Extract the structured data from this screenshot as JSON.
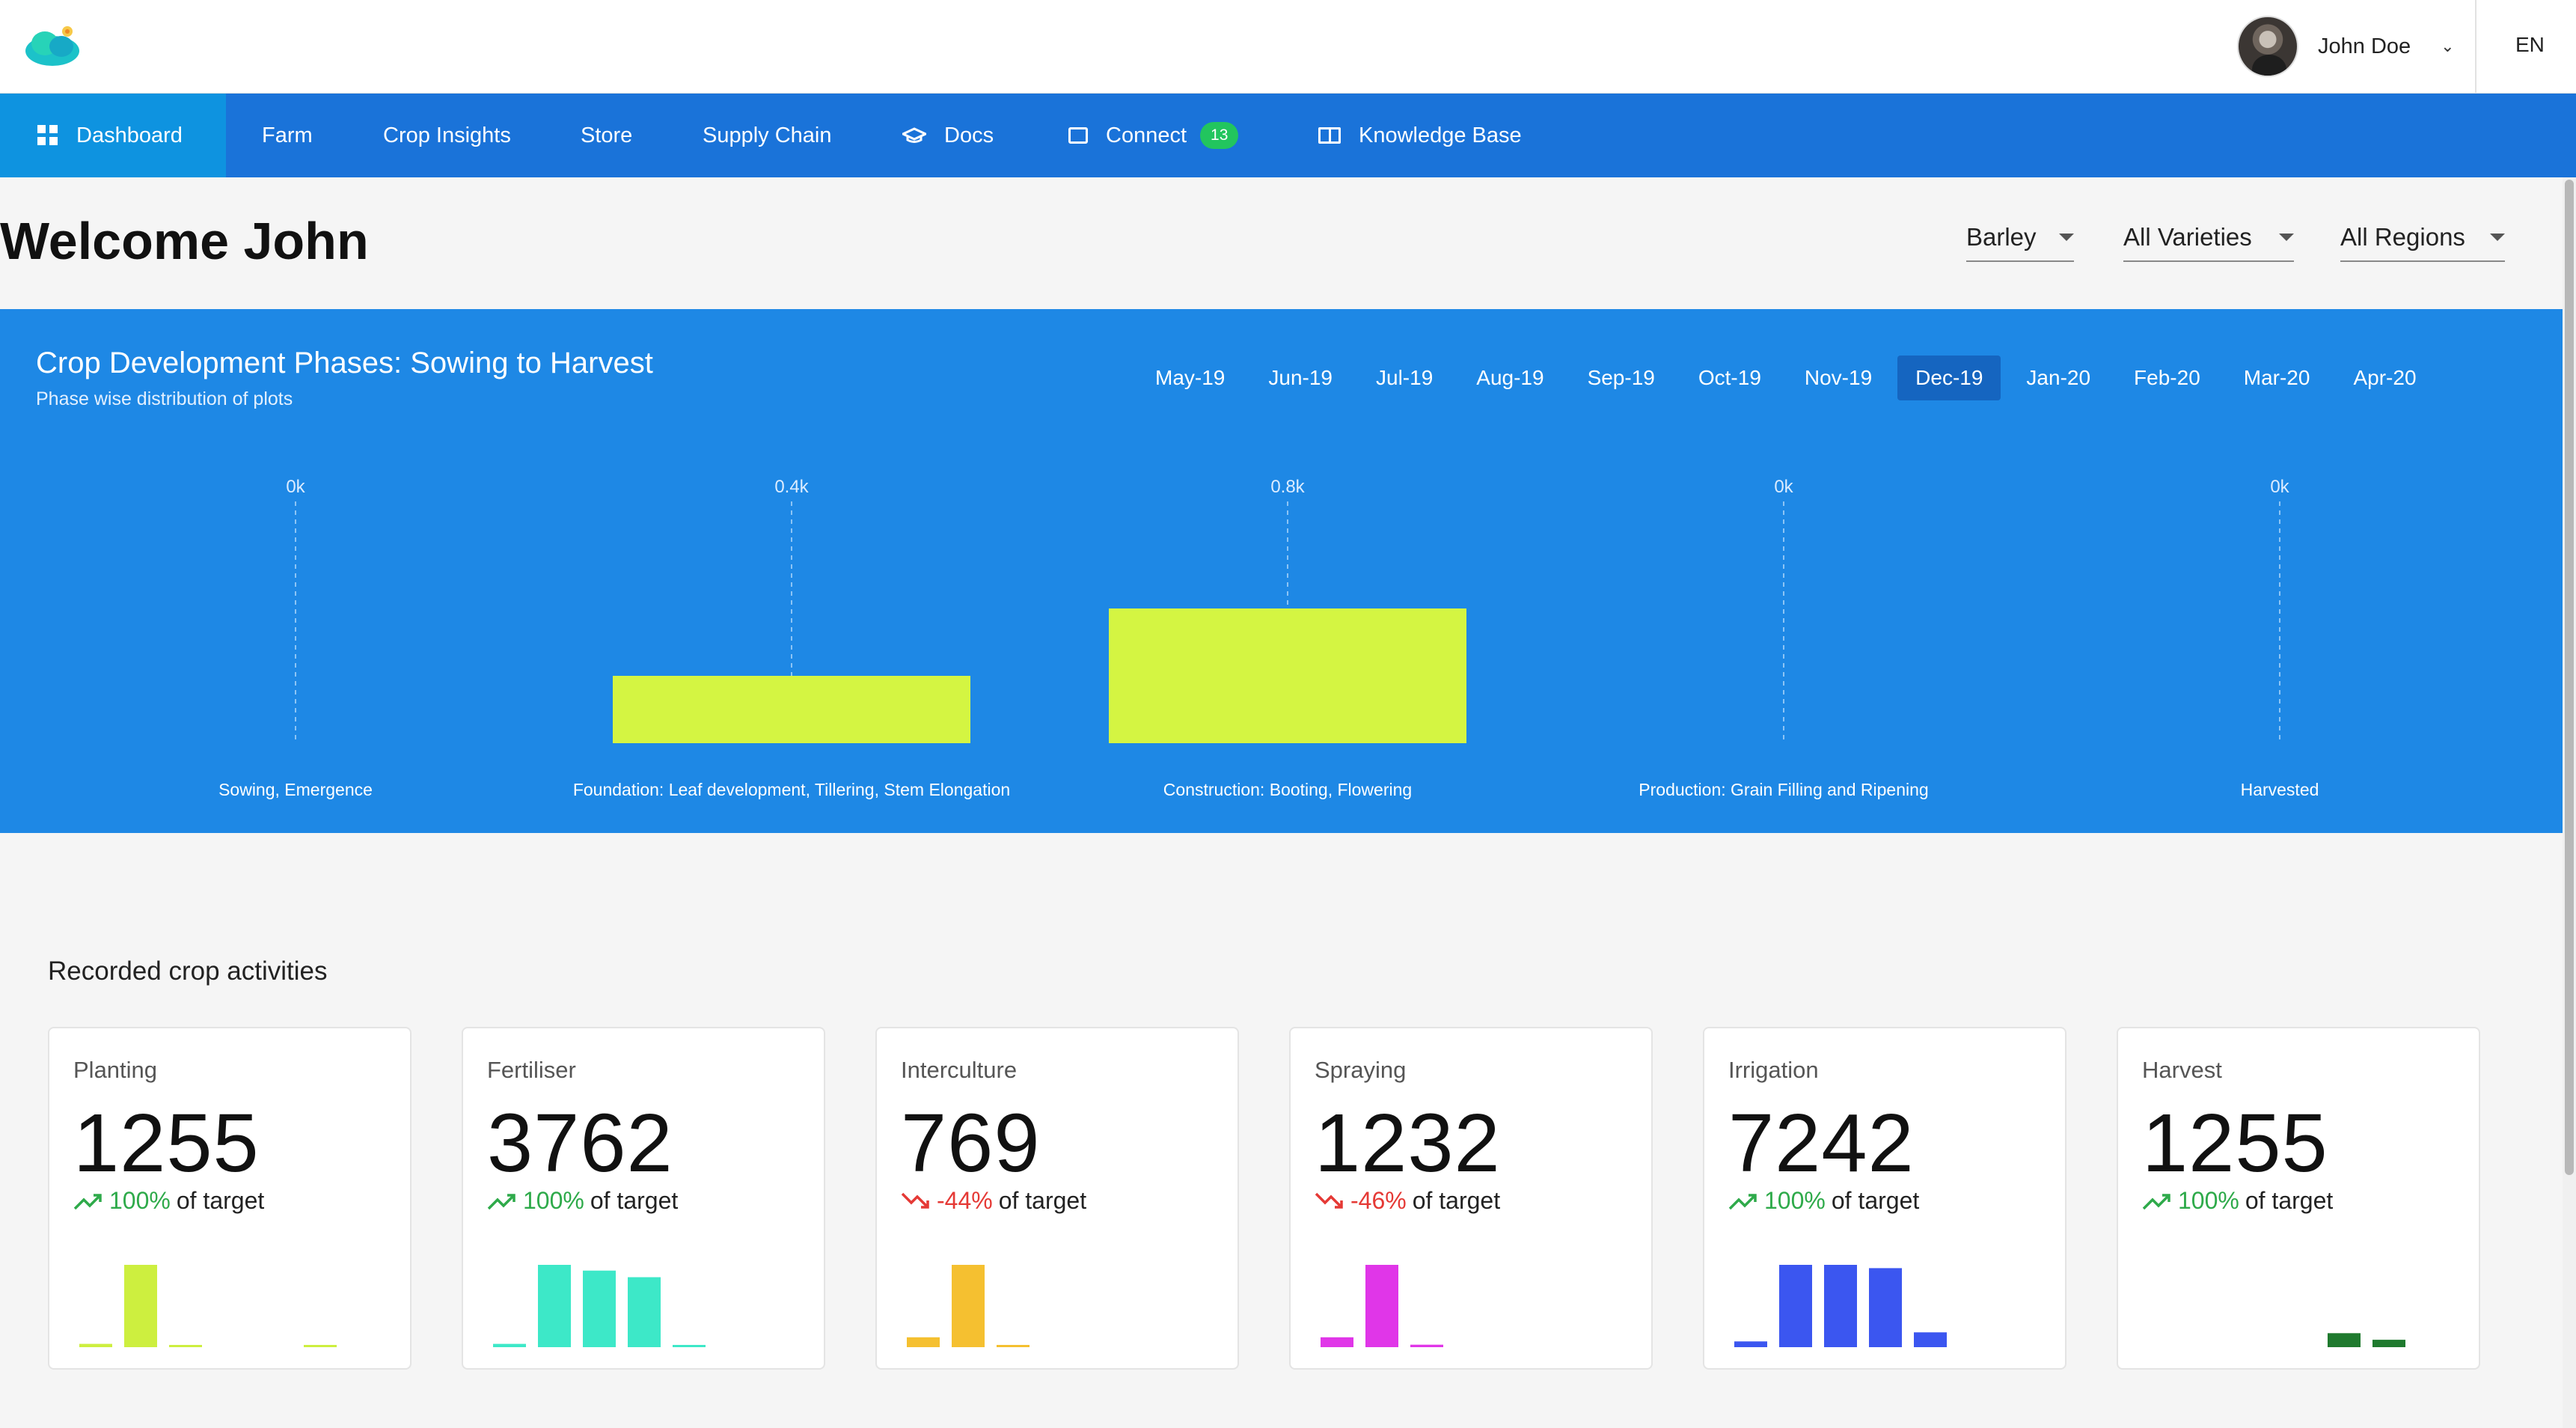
{
  "header": {
    "user_name": "John Doe",
    "language": "EN"
  },
  "nav": {
    "items": [
      {
        "label": "Dashboard",
        "icon": "dashboard-icon",
        "active": true
      },
      {
        "label": "Farm"
      },
      {
        "label": "Crop Insights"
      },
      {
        "label": "Store"
      },
      {
        "label": "Supply Chain"
      },
      {
        "label": "Docs",
        "icon": "graduation-cap-icon"
      },
      {
        "label": "Connect",
        "icon": "chat-icon",
        "badge": "13"
      },
      {
        "label": "Knowledge Base",
        "icon": "book-icon"
      }
    ]
  },
  "welcome": "Welcome John",
  "filters": {
    "crop": "Barley",
    "variety": "All Varieties",
    "region": "All Regions"
  },
  "chart_panel": {
    "title": "Crop Development Phases: Sowing to Harvest",
    "subtitle": "Phase wise distribution of plots",
    "months": [
      "May-19",
      "Jun-19",
      "Jul-19",
      "Aug-19",
      "Sep-19",
      "Oct-19",
      "Nov-19",
      "Dec-19",
      "Jan-20",
      "Feb-20",
      "Mar-20",
      "Apr-20"
    ],
    "active_month": "Dec-19"
  },
  "chart_data": {
    "type": "bar",
    "title": "Crop Development Phases: Sowing to Harvest",
    "subtitle": "Phase wise distribution of plots",
    "categories": [
      "Sowing, Emergence",
      "Foundation: Leaf development, Tillering, Stem Elongation",
      "Construction: Booting, Flowering",
      "Production: Grain Filling and Ripening",
      "Harvested"
    ],
    "values": [
      0,
      400,
      800,
      0,
      0
    ],
    "data_labels": [
      "0k",
      "0.4k",
      "0.8k",
      "0k",
      "0k"
    ],
    "bar_color": "#d4f542",
    "grid": false
  },
  "activities": {
    "title": "Recorded crop activities",
    "of_target": "of target",
    "cards": [
      {
        "label": "Planting",
        "value": "1255",
        "trend": "100%",
        "direction": "up",
        "color": "#cdef3f",
        "bars": [
          0.04,
          1.0,
          0.01,
          0,
          0,
          0.01
        ]
      },
      {
        "label": "Fertiliser",
        "value": "3762",
        "trend": "100%",
        "direction": "up",
        "color": "#3de8c8",
        "bars": [
          0.04,
          1.0,
          0.93,
          0.85,
          0.02,
          0
        ]
      },
      {
        "label": "Interculture",
        "value": "769",
        "trend": "-44%",
        "direction": "down",
        "color": "#f5c030",
        "bars": [
          0.12,
          1.0,
          0.02,
          0,
          0,
          0
        ]
      },
      {
        "label": "Spraying",
        "value": "1232",
        "trend": "-46%",
        "direction": "down",
        "color": "#e036e8",
        "bars": [
          0.12,
          1.0,
          0.03,
          0,
          0,
          0
        ]
      },
      {
        "label": "Irrigation",
        "value": "7242",
        "trend": "100%",
        "direction": "up",
        "color": "#3b56f0",
        "bars": [
          0.07,
          1.0,
          1.0,
          0.96,
          0.18,
          0
        ]
      },
      {
        "label": "Harvest",
        "value": "1255",
        "trend": "100%",
        "direction": "up",
        "color": "#1f7a2e",
        "bars": [
          0,
          0,
          0,
          0,
          0.17,
          0.09
        ]
      }
    ]
  },
  "colors": {
    "nav_bg": "#1a73d9",
    "nav_active": "#0e93e0",
    "chart_bg": "#1e88e5",
    "positive": "#2eaa4a",
    "negative": "#e53935"
  }
}
